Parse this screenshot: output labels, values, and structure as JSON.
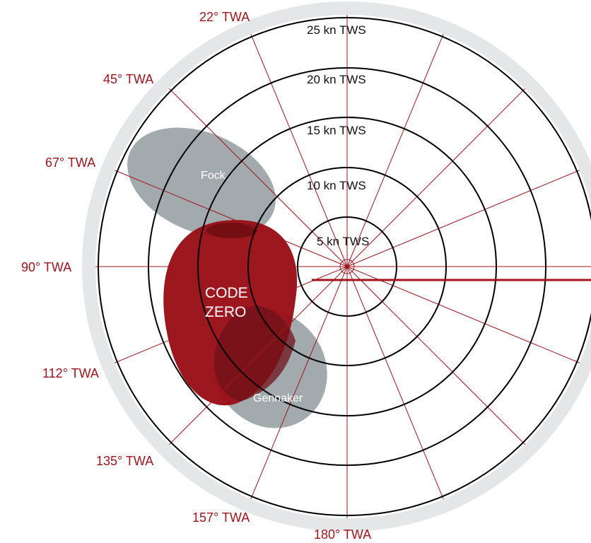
{
  "colors": {
    "accent": "#a0141c",
    "rim": "#e4e6e8",
    "disk": "#ffffff",
    "ring": "#000000",
    "sail_gray": "#8e979c",
    "sail_red": "#9a1018"
  },
  "twa_labels": [
    "22° TWA",
    "45° TWA",
    "67° TWA",
    "90° TWA",
    "112° TWA",
    "135° TWA",
    "157° TWA",
    "180° TWA"
  ],
  "tws_labels": [
    "5 kn TWS",
    "10 kn TWS",
    "15 kn TWS",
    "20 kn TWS",
    "25 kn TWS"
  ],
  "sails": {
    "fock": "Fock",
    "code_zero_line1": "CODE",
    "code_zero_line2": "ZERO",
    "gennaker": "Gennaker"
  }
}
